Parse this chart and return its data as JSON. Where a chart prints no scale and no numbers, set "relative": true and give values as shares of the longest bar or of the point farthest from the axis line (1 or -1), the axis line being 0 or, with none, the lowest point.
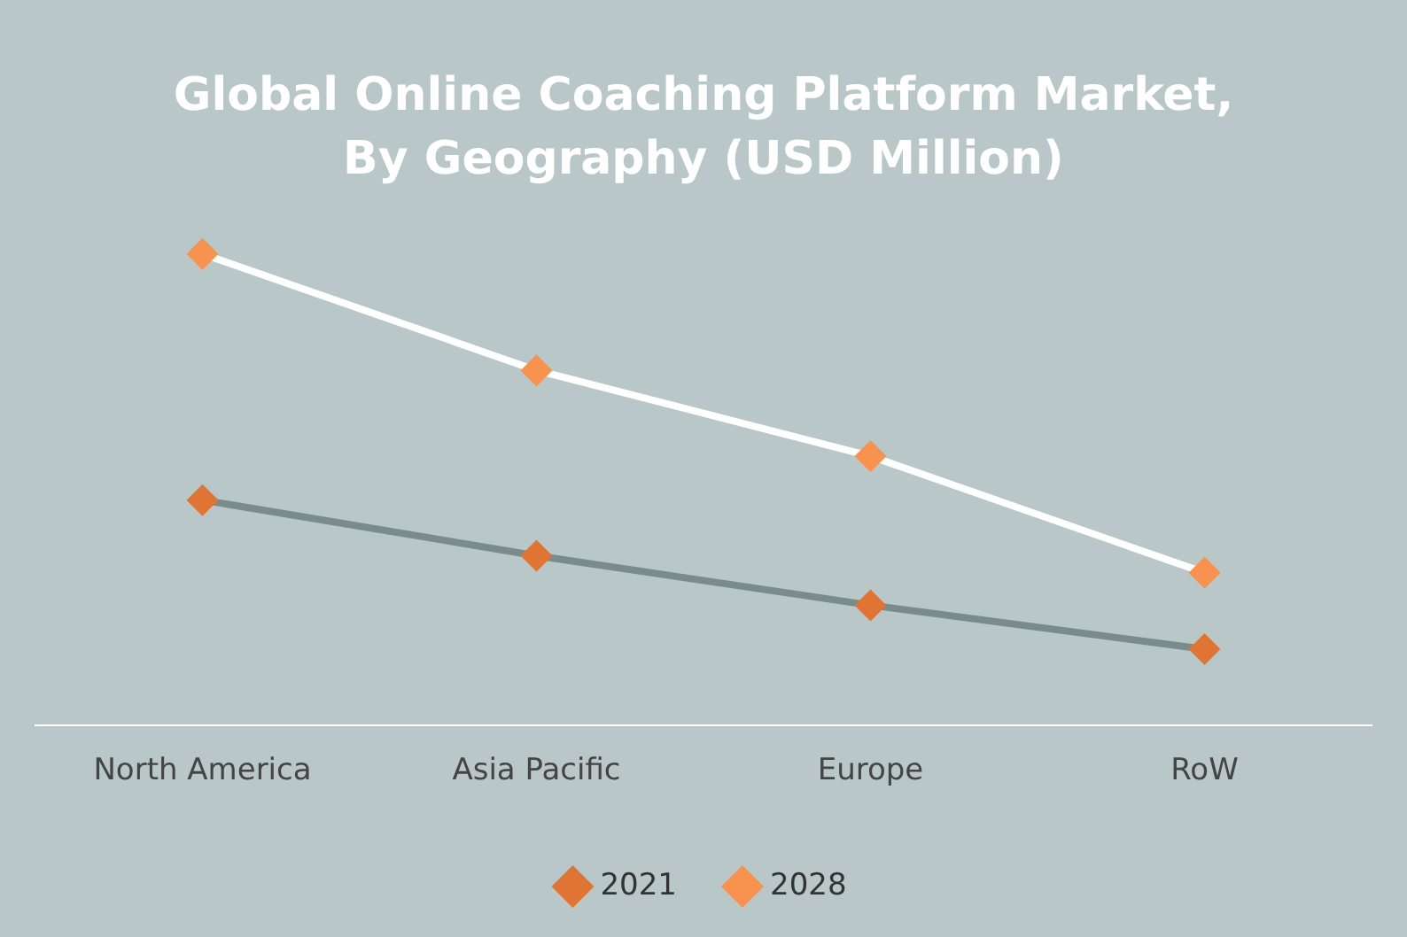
{
  "chart_data": {
    "type": "line",
    "title": "Global Online Coaching Platform Market,\nBy Geography (USD Million)",
    "categories": [
      "North America",
      "Asia Pacific",
      "Europe",
      "RoW"
    ],
    "relative": true,
    "marker": "diamond",
    "line_style": "solid",
    "grid": false,
    "legend": "bottom",
    "series": [
      {
        "name": "2021",
        "color": "#7a8b8c",
        "values": [
          0.478,
          0.36,
          0.255,
          0.162
        ]
      },
      {
        "name": "2028",
        "color": "#ffffff",
        "values": [
          1,
          0.753,
          0.571,
          0.324
        ]
      }
    ]
  }
}
